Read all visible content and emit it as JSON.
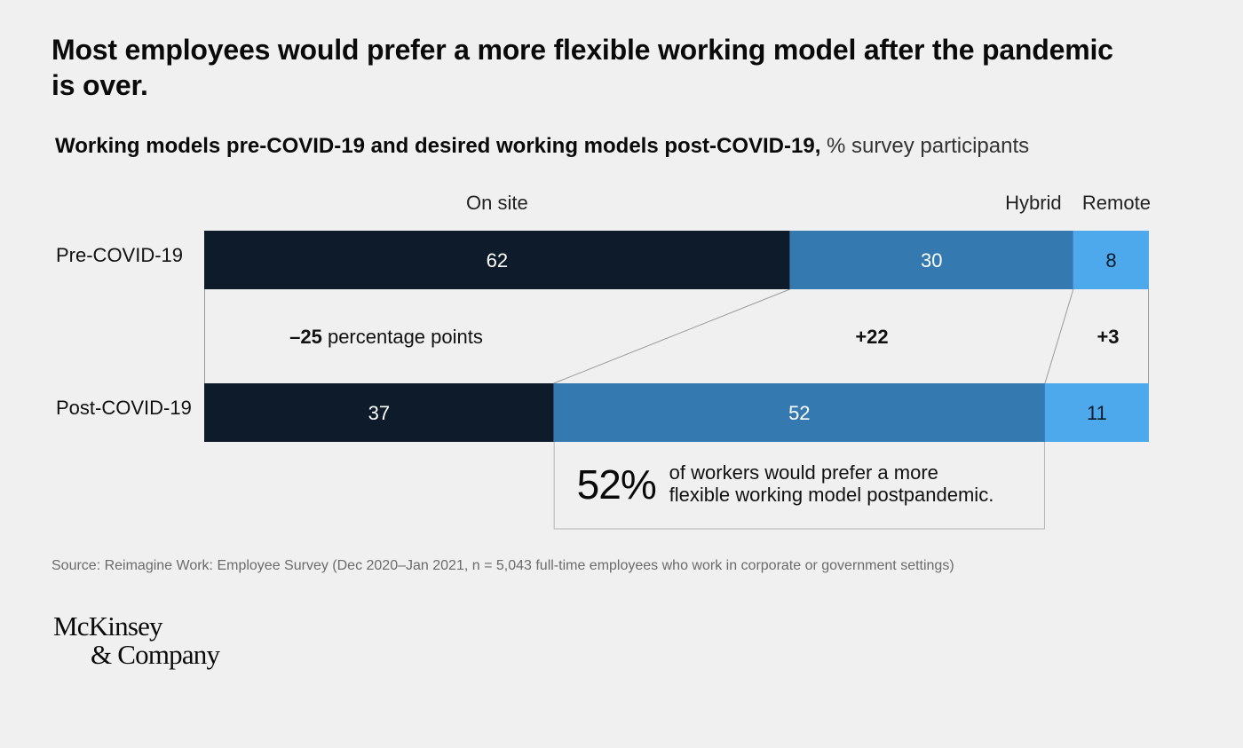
{
  "header": {
    "title": "Most employees would prefer a more flexible working model after the pandemic is over.",
    "subtitle_bold": "Working models pre-COVID-19 and desired working models post-COVID-19,",
    "subtitle_light": "% survey participants"
  },
  "chart_data": {
    "type": "bar",
    "orientation": "horizontal",
    "stacked": true,
    "xlim": [
      0,
      100
    ],
    "categories": [
      "Pre-COVID-19",
      "Post-COVID-19"
    ],
    "series": [
      {
        "name": "On site",
        "values": [
          62,
          37
        ],
        "color": "#0d1b2a"
      },
      {
        "name": "Hybrid",
        "values": [
          30,
          52
        ],
        "color": "#3479b0"
      },
      {
        "name": "Remote",
        "values": [
          8,
          11
        ],
        "color": "#4ea8ec"
      }
    ],
    "changes": [
      {
        "value": "–25",
        "suffix": " percentage points"
      },
      {
        "value": "+22",
        "suffix": ""
      },
      {
        "value": "+3",
        "suffix": ""
      }
    ],
    "callout": {
      "value": "52%",
      "text": "of workers would prefer a more flexible working model postpandemic."
    }
  },
  "footer": {
    "source": "Source: Reimagine Work: Employee Survey (Dec 2020–Jan 2021, n = 5,043 full-time employees who work in corporate or government settings)",
    "logo_line1": "McKinsey",
    "logo_line2": "& Company"
  }
}
